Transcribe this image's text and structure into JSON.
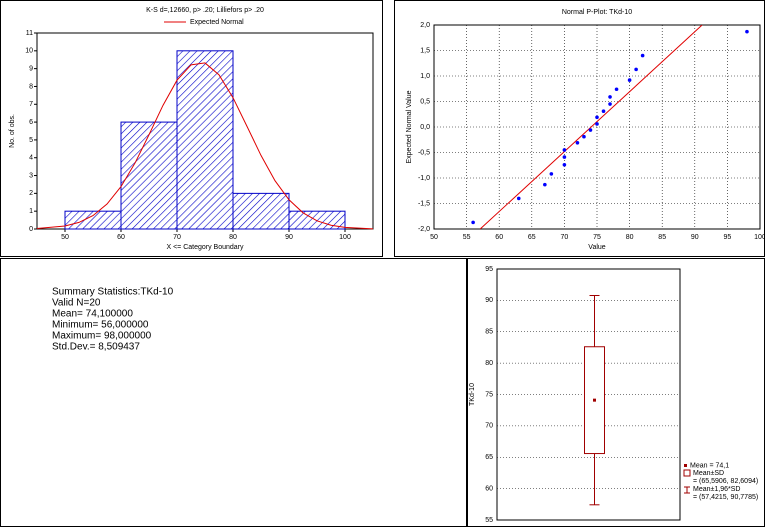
{
  "chart_data": [
    {
      "type": "histogram",
      "title": "K-S d=,12660, p> .20; Lilliefors p> .20",
      "xlabel": "X <= Category Boundary",
      "ylabel": "No. of obs.",
      "bins": [
        50,
        60,
        70,
        80,
        90,
        100
      ],
      "values": [
        1,
        6,
        10,
        2,
        1
      ],
      "color": "#0000c8",
      "xlim": [
        45,
        105
      ],
      "xticks": [
        50,
        60,
        70,
        80,
        90,
        100
      ],
      "ylim": [
        0,
        11
      ],
      "yticks": [
        0,
        1,
        2,
        3,
        4,
        5,
        6,
        7,
        8,
        9,
        10,
        11
      ],
      "series": [
        {
          "name": "Expected Normal",
          "color": "#e00000",
          "x": [
            45,
            50,
            52.5,
            55,
            57.5,
            60,
            62.5,
            65,
            67.5,
            70,
            72.5,
            75,
            77.5,
            80,
            82.5,
            85,
            87.5,
            90,
            92.5,
            95,
            97.5,
            100,
            105
          ],
          "values": [
            0.03,
            0.17,
            0.37,
            0.75,
            1.4,
            2.38,
            3.7,
            5.29,
            6.94,
            8.35,
            9.21,
            9.32,
            8.65,
            7.37,
            5.76,
            4.13,
            2.71,
            1.64,
            0.91,
            0.46,
            0.21,
            0.09,
            0.01
          ]
        }
      ]
    },
    {
      "type": "scatter",
      "title": "Normal P-Plot: TKd-10",
      "xlabel": "Value",
      "ylabel": "Expected Normal Value",
      "x": [
        56,
        63,
        67,
        68,
        70,
        70,
        70,
        72,
        73,
        74,
        75,
        75,
        76,
        77,
        77,
        78,
        80,
        81,
        82,
        98
      ],
      "values": [
        -1.87,
        -1.4,
        -1.13,
        -0.92,
        -0.74,
        -0.59,
        -0.45,
        -0.31,
        -0.19,
        -0.06,
        0.06,
        0.19,
        0.31,
        0.45,
        0.59,
        0.74,
        0.92,
        1.13,
        1.4,
        1.87
      ],
      "color": "#0000ff",
      "xlim": [
        50,
        100
      ],
      "xticks": [
        50,
        55,
        60,
        65,
        70,
        75,
        80,
        85,
        90,
        95,
        100
      ],
      "ylim": [
        -2,
        2
      ],
      "yticks": [
        {
          "value": -2,
          "label": "-2,0"
        },
        {
          "value": -1.5,
          "label": "-1,5"
        },
        {
          "value": -1,
          "label": "-1,0"
        },
        {
          "value": -0.5,
          "label": "-0,5"
        },
        {
          "value": 0,
          "label": "0,0"
        },
        {
          "value": 0.5,
          "label": "0,5"
        },
        {
          "value": 1,
          "label": "1,0"
        },
        {
          "value": 1.5,
          "label": "1,5"
        },
        {
          "value": 2,
          "label": "2,0"
        }
      ],
      "grid": true,
      "fit_line": {
        "color": "#e00000",
        "x": [
          57.08,
          91.12
        ],
        "values": [
          -2,
          2
        ]
      }
    },
    {
      "type": "box",
      "ylabel": "TKd-10",
      "color": "#a00000",
      "ylim": [
        55,
        95
      ],
      "yticks": [
        55,
        60,
        65,
        70,
        75,
        80,
        85,
        90,
        95
      ],
      "grid": true,
      "mean": 74.1,
      "box": [
        65.5906,
        82.6094
      ],
      "whiskers": [
        57.4215,
        90.7785
      ],
      "legend": [
        "Mean = 74,1",
        "Mean±SD",
        "= (65,5906, 82,6094)",
        "Mean±1,96*SD",
        "= (57,4215, 90,7785)"
      ]
    }
  ],
  "summary": {
    "title": "Summary Statistics:TKd-10",
    "lines": [
      "Valid N=20",
      "Mean= 74,100000",
      "Minimum= 56,000000",
      "Maximum= 98,000000",
      "Std.Dev.= 8,509437"
    ]
  }
}
